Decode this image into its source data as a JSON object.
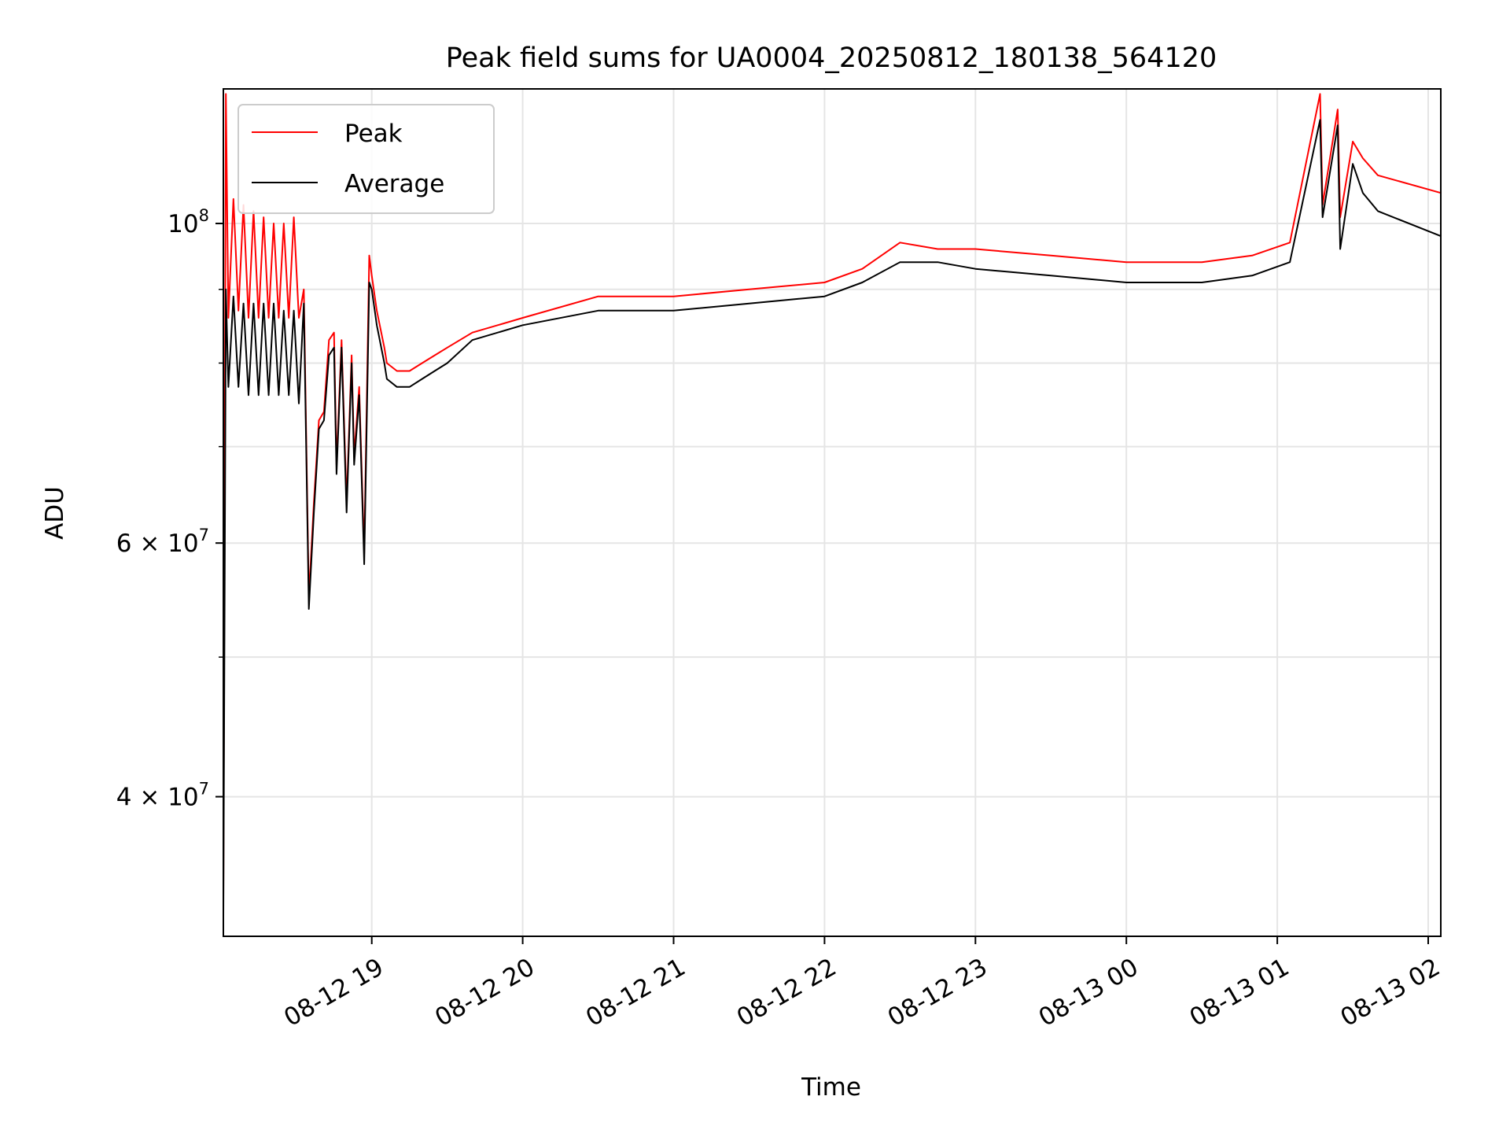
{
  "chart_data": {
    "type": "line",
    "title": "Peak field sums for UA0004_20250812_180138_564120",
    "xlabel": "Time",
    "ylabel": "ADU",
    "yscale": "log",
    "grid": true,
    "legend_position": "upper-left",
    "xlim": [
      "2025-08-12 18:01",
      "2025-08-13 02:05"
    ],
    "ylim": [
      32000000,
      124000000
    ],
    "x_ticks": [
      {
        "value": "2025-08-12 19:00",
        "label": "08-12 19"
      },
      {
        "value": "2025-08-12 20:00",
        "label": "08-12 20"
      },
      {
        "value": "2025-08-12 21:00",
        "label": "08-12 21"
      },
      {
        "value": "2025-08-12 22:00",
        "label": "08-12 22"
      },
      {
        "value": "2025-08-12 23:00",
        "label": "08-12 23"
      },
      {
        "value": "2025-08-13 00:00",
        "label": "08-13 00"
      },
      {
        "value": "2025-08-13 01:00",
        "label": "08-13 01"
      },
      {
        "value": "2025-08-13 02:00",
        "label": "08-13 02"
      }
    ],
    "y_ticks": [
      {
        "value": 40000000,
        "base": "4",
        "exp": "7"
      },
      {
        "value": 60000000,
        "base": "6",
        "exp": "7"
      },
      {
        "value": 100000000,
        "base": "10",
        "exp": "8"
      }
    ],
    "y_minor_ticks": [
      50000000,
      70000000,
      80000000,
      90000000
    ],
    "series": [
      {
        "name": "Peak",
        "color": "#ff0000",
        "x": [
          "2025-08-12 18:01",
          "2025-08-12 18:02",
          "2025-08-12 18:03",
          "2025-08-12 18:05",
          "2025-08-12 18:07",
          "2025-08-12 18:09",
          "2025-08-12 18:11",
          "2025-08-12 18:13",
          "2025-08-12 18:15",
          "2025-08-12 18:17",
          "2025-08-12 18:19",
          "2025-08-12 18:21",
          "2025-08-12 18:23",
          "2025-08-12 18:25",
          "2025-08-12 18:27",
          "2025-08-12 18:29",
          "2025-08-12 18:31",
          "2025-08-12 18:33",
          "2025-08-12 18:35",
          "2025-08-12 18:37",
          "2025-08-12 18:39",
          "2025-08-12 18:41",
          "2025-08-12 18:43",
          "2025-08-12 18:45",
          "2025-08-12 18:46",
          "2025-08-12 18:48",
          "2025-08-12 18:50",
          "2025-08-12 18:52",
          "2025-08-12 18:53",
          "2025-08-12 18:55",
          "2025-08-12 18:57",
          "2025-08-12 18:59",
          "2025-08-12 19:00",
          "2025-08-12 19:02",
          "2025-08-12 19:05",
          "2025-08-12 19:06",
          "2025-08-12 19:10",
          "2025-08-12 19:15",
          "2025-08-12 19:20",
          "2025-08-12 19:25",
          "2025-08-12 19:30",
          "2025-08-12 19:40",
          "2025-08-12 20:00",
          "2025-08-12 20:30",
          "2025-08-12 21:00",
          "2025-08-12 21:30",
          "2025-08-12 22:00",
          "2025-08-12 22:15",
          "2025-08-12 22:30",
          "2025-08-12 22:45",
          "2025-08-12 23:00",
          "2025-08-12 23:30",
          "2025-08-13 00:00",
          "2025-08-13 00:30",
          "2025-08-13 00:50",
          "2025-08-13 01:05",
          "2025-08-13 01:17",
          "2025-08-13 01:18",
          "2025-08-13 01:24",
          "2025-08-13 01:25",
          "2025-08-13 01:30",
          "2025-08-13 01:34",
          "2025-08-13 01:40",
          "2025-08-13 02:05"
        ],
        "y": [
          34000000,
          123000000,
          86000000,
          104000000,
          87000000,
          103000000,
          86000000,
          102000000,
          86000000,
          101000000,
          86000000,
          100000000,
          86000000,
          100000000,
          86000000,
          101000000,
          86000000,
          90000000,
          55000000,
          64000000,
          73000000,
          74000000,
          83000000,
          84000000,
          68000000,
          83000000,
          64000000,
          81000000,
          69000000,
          77000000,
          59000000,
          95000000,
          92000000,
          87000000,
          82000000,
          80000000,
          79000000,
          79000000,
          80000000,
          81000000,
          82000000,
          84000000,
          86000000,
          89000000,
          89000000,
          90000000,
          91000000,
          93000000,
          97000000,
          96000000,
          96000000,
          95000000,
          94000000,
          94000000,
          95000000,
          97000000,
          123000000,
          103000000,
          120000000,
          101000000,
          114000000,
          111000000,
          108000000,
          105000000
        ]
      },
      {
        "name": "Average",
        "color": "#000000",
        "x": [
          "2025-08-12 18:01",
          "2025-08-12 18:02",
          "2025-08-12 18:03",
          "2025-08-12 18:05",
          "2025-08-12 18:07",
          "2025-08-12 18:09",
          "2025-08-12 18:11",
          "2025-08-12 18:13",
          "2025-08-12 18:15",
          "2025-08-12 18:17",
          "2025-08-12 18:19",
          "2025-08-12 18:21",
          "2025-08-12 18:23",
          "2025-08-12 18:25",
          "2025-08-12 18:27",
          "2025-08-12 18:29",
          "2025-08-12 18:31",
          "2025-08-12 18:33",
          "2025-08-12 18:35",
          "2025-08-12 18:37",
          "2025-08-12 18:39",
          "2025-08-12 18:41",
          "2025-08-12 18:43",
          "2025-08-12 18:45",
          "2025-08-12 18:46",
          "2025-08-12 18:48",
          "2025-08-12 18:50",
          "2025-08-12 18:52",
          "2025-08-12 18:53",
          "2025-08-12 18:55",
          "2025-08-12 18:57",
          "2025-08-12 18:59",
          "2025-08-12 19:00",
          "2025-08-12 19:02",
          "2025-08-12 19:05",
          "2025-08-12 19:06",
          "2025-08-12 19:10",
          "2025-08-12 19:15",
          "2025-08-12 19:20",
          "2025-08-12 19:25",
          "2025-08-12 19:30",
          "2025-08-12 19:40",
          "2025-08-12 20:00",
          "2025-08-12 20:30",
          "2025-08-12 21:00",
          "2025-08-12 21:30",
          "2025-08-12 22:00",
          "2025-08-12 22:15",
          "2025-08-12 22:30",
          "2025-08-12 22:45",
          "2025-08-12 23:00",
          "2025-08-12 23:30",
          "2025-08-13 00:00",
          "2025-08-13 00:30",
          "2025-08-13 00:50",
          "2025-08-13 01:05",
          "2025-08-13 01:17",
          "2025-08-13 01:18",
          "2025-08-13 01:24",
          "2025-08-13 01:25",
          "2025-08-13 01:30",
          "2025-08-13 01:34",
          "2025-08-13 01:40",
          "2025-08-13 02:05"
        ],
        "y": [
          33000000,
          90000000,
          77000000,
          89000000,
          77000000,
          88000000,
          76000000,
          88000000,
          76000000,
          88000000,
          76000000,
          88000000,
          76000000,
          87000000,
          76000000,
          87000000,
          75000000,
          88000000,
          54000000,
          63000000,
          72000000,
          73000000,
          81000000,
          82000000,
          67000000,
          82000000,
          63000000,
          80000000,
          68000000,
          76000000,
          58000000,
          91000000,
          90000000,
          85000000,
          80000000,
          78000000,
          77000000,
          77000000,
          78000000,
          79000000,
          80000000,
          83000000,
          85000000,
          87000000,
          87000000,
          88000000,
          89000000,
          91000000,
          94000000,
          94000000,
          93000000,
          92000000,
          91000000,
          91000000,
          92000000,
          94000000,
          118000000,
          101000000,
          117000000,
          96000000,
          110000000,
          105000000,
          102000000,
          98000000
        ]
      }
    ]
  }
}
